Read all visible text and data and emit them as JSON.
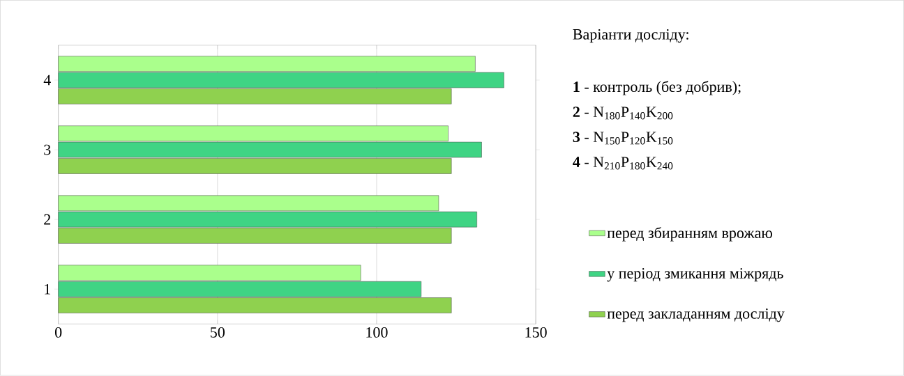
{
  "chart_data": {
    "type": "bar",
    "orientation": "horizontal",
    "categories": [
      "4",
      "3",
      "2",
      "1"
    ],
    "series": [
      {
        "name": "перед збиранням врожаю",
        "color": "#aaff8c",
        "values": [
          131,
          122.5,
          119.5,
          95
        ]
      },
      {
        "name": "у період змикання міжрядь",
        "color": "#3fd484",
        "values": [
          140,
          133,
          131.5,
          114
        ]
      },
      {
        "name": "перед закладанням досліду",
        "color": "#8fd14f",
        "values": [
          123.5,
          123.5,
          123.5,
          123.5
        ]
      }
    ],
    "xlim": [
      0,
      150
    ],
    "xticks": [
      0,
      50,
      100,
      150
    ],
    "grid": "x",
    "legend": "right",
    "annotations": [
      "Варіанти досліду:",
      "**1** - контроль (без добрив);",
      "**2** - N$_{180}$P$_{140}$K$_{200}$",
      "**3** - N$_{150}$P$_{120}$K$_{150}$",
      "**4** - N$_{210}$P$_{180}$K$_{240}$"
    ]
  }
}
